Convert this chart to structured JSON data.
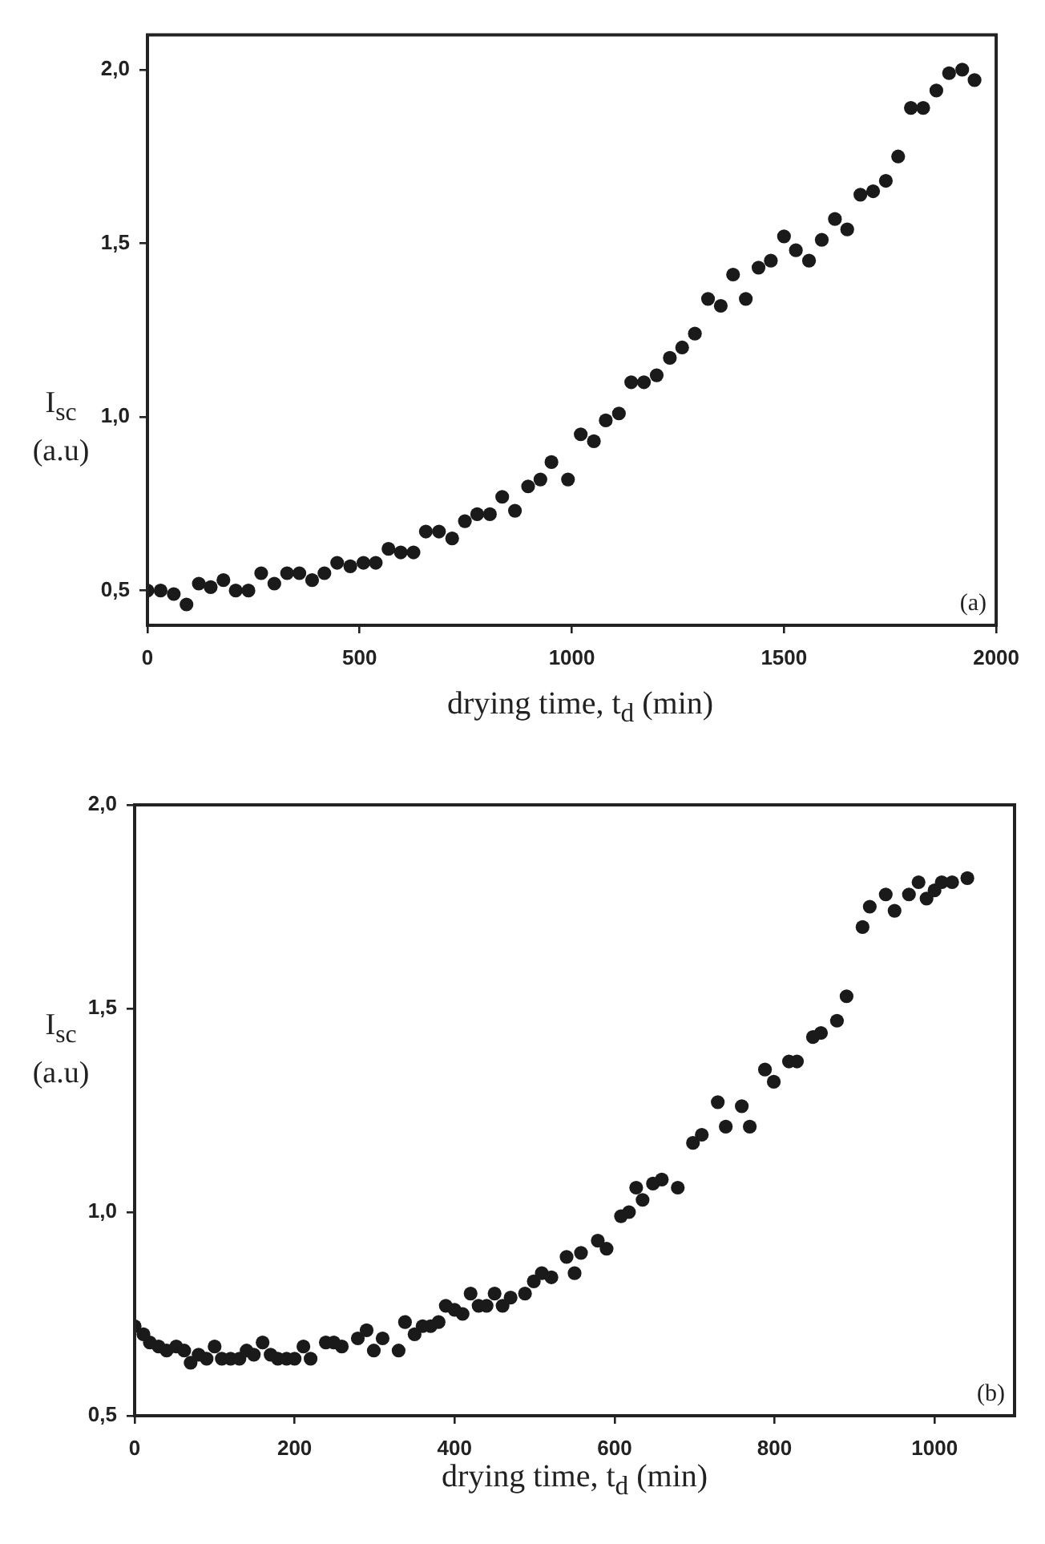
{
  "chart_data": [
    {
      "type": "scatter",
      "xlabel": "drying time, t$_{d}$ (min)",
      "ylabel": "I$_{sc}$ (a.u)",
      "annotations": [
        "(a)"
      ],
      "xlim": [
        0,
        2000
      ],
      "xticks": [
        0,
        500,
        1000,
        1500,
        2000
      ],
      "ylim": [
        0.4,
        2.1
      ],
      "yticks": [
        {
          "value": 0.5,
          "label": "0,5"
        },
        {
          "value": 1.0,
          "label": "1,0"
        },
        {
          "value": 1.5,
          "label": "1,5"
        },
        {
          "value": 2.0,
          "label": "2,0"
        }
      ],
      "grid": false,
      "legend": false,
      "marker": "circle",
      "series": [
        {
          "color": "#1a1a1a",
          "x": [
            0,
            31,
            62,
            92,
            121,
            149,
            179,
            208,
            238,
            268,
            299,
            329,
            358,
            388,
            417,
            447,
            478,
            509,
            538,
            568,
            597,
            627,
            656,
            687,
            718,
            748,
            777,
            807,
            836,
            866,
            897,
            926,
            952,
            991,
            1021,
            1052,
            1080,
            1111,
            1140,
            1170,
            1200,
            1231,
            1260,
            1290,
            1321,
            1351,
            1380,
            1410,
            1440,
            1469,
            1500,
            1528,
            1559,
            1589,
            1620,
            1649,
            1680,
            1710,
            1740,
            1769,
            1799,
            1828,
            1859,
            1889,
            1920,
            1949
          ],
          "values": [
            0.5,
            0.5,
            0.49,
            0.46,
            0.52,
            0.51,
            0.53,
            0.5,
            0.5,
            0.55,
            0.52,
            0.55,
            0.55,
            0.53,
            0.55,
            0.58,
            0.57,
            0.58,
            0.58,
            0.62,
            0.61,
            0.61,
            0.67,
            0.67,
            0.65,
            0.7,
            0.72,
            0.72,
            0.77,
            0.73,
            0.8,
            0.82,
            0.87,
            0.82,
            0.95,
            0.93,
            0.99,
            1.01,
            1.1,
            1.1,
            1.12,
            1.17,
            1.2,
            1.24,
            1.34,
            1.32,
            1.41,
            1.34,
            1.43,
            1.45,
            1.52,
            1.48,
            1.45,
            1.51,
            1.57,
            1.54,
            1.64,
            1.65,
            1.68,
            1.75,
            1.89,
            1.89,
            1.94,
            1.99,
            2.0,
            1.97
          ]
        }
      ]
    },
    {
      "type": "scatter",
      "xlabel": "drying time, t$_{d}$ (min)",
      "ylabel": "I$_{sc}$ (a.u)",
      "annotations": [
        "(b)"
      ],
      "xlim": [
        0,
        1100
      ],
      "xticks": [
        0,
        200,
        400,
        600,
        800,
        1000
      ],
      "ylim": [
        0.5,
        2.0
      ],
      "yticks": [
        {
          "value": 0.5,
          "label": "0,5"
        },
        {
          "value": 1.0,
          "label": "1,0"
        },
        {
          "value": 1.5,
          "label": "1,5"
        },
        {
          "value": 2.0,
          "label": "2,0"
        }
      ],
      "grid": false,
      "legend": false,
      "marker": "circle",
      "series": [
        {
          "color": "#1a1a1a",
          "x": [
            0,
            11,
            19,
            30,
            40,
            52,
            62,
            70,
            80,
            90,
            100,
            109,
            120,
            131,
            140,
            149,
            160,
            170,
            179,
            190,
            200,
            211,
            220,
            239,
            249,
            259,
            279,
            290,
            299,
            310,
            330,
            338,
            350,
            360,
            370,
            380,
            389,
            400,
            410,
            420,
            430,
            440,
            450,
            460,
            470,
            488,
            499,
            509,
            521,
            540,
            550,
            558,
            579,
            590,
            608,
            618,
            627,
            635,
            648,
            659,
            679,
            698,
            709,
            729,
            739,
            759,
            769,
            788,
            799,
            818,
            828,
            848,
            858,
            878,
            890,
            910,
            919,
            939,
            950,
            968,
            980,
            990,
            1000,
            1009,
            1022,
            1041
          ],
          "values": [
            0.72,
            0.7,
            0.68,
            0.67,
            0.66,
            0.67,
            0.66,
            0.63,
            0.65,
            0.64,
            0.67,
            0.64,
            0.64,
            0.64,
            0.66,
            0.65,
            0.68,
            0.65,
            0.64,
            0.64,
            0.64,
            0.67,
            0.64,
            0.68,
            0.68,
            0.67,
            0.69,
            0.71,
            0.66,
            0.69,
            0.66,
            0.73,
            0.7,
            0.72,
            0.72,
            0.73,
            0.77,
            0.76,
            0.75,
            0.8,
            0.77,
            0.77,
            0.8,
            0.77,
            0.79,
            0.8,
            0.83,
            0.85,
            0.84,
            0.89,
            0.85,
            0.9,
            0.93,
            0.91,
            0.99,
            1.0,
            1.06,
            1.03,
            1.07,
            1.08,
            1.06,
            1.17,
            1.19,
            1.27,
            1.21,
            1.26,
            1.21,
            1.35,
            1.32,
            1.37,
            1.37,
            1.43,
            1.44,
            1.47,
            1.53,
            1.7,
            1.75,
            1.78,
            1.74,
            1.78,
            1.81,
            1.77,
            1.79,
            1.81,
            1.81,
            1.82
          ]
        }
      ]
    }
  ]
}
